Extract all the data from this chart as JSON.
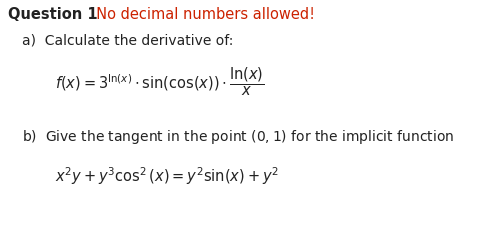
{
  "bg_color": "#ffffff",
  "text_color": "#222222",
  "red_color": "#cc2200",
  "title_q": "Question 1",
  "title_r": "  No decimal numbers allowed!",
  "part_a": "a)  Calculate the derivative of:",
  "formula_a": "$f(x) = 3^{\\mathrm{ln}(x)} \\cdot \\sin(\\cos(x)) \\cdot \\dfrac{\\mathrm{ln}(x)}{x}$",
  "part_b": "b)  Give the tangent in the point $(0, 1)$ for the implicit function",
  "formula_b": "$x^2y + y^3\\cos^2(x) = y^2\\sin(x) + y^2$",
  "title_fs": 10.5,
  "body_fs": 10.0,
  "formula_fs": 10.5
}
